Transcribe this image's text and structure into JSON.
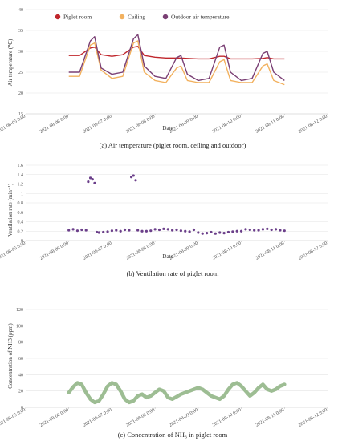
{
  "colors": {
    "piglet": "#c0272d",
    "ceiling": "#f2b15f",
    "outdoor": "#7a3f74",
    "vent": "#6b3f8a",
    "nh3": "#9dbd93",
    "grid": "#e3e3e3",
    "axis": "#bfbfbf"
  },
  "chart_data": [
    {
      "type": "line",
      "caption": "(a) Air temperature (piglet room, ceiling and outdoor)",
      "xlabel": "Date",
      "ylabel": "Air temperature (℃)",
      "ylim": [
        15,
        40
      ],
      "yticks": [
        "15",
        "20",
        "25",
        "30",
        "35",
        "40"
      ],
      "xlim_days": [
        0,
        7
      ],
      "xticks": [
        "2021-08-05 0:00",
        "2021-08-06 0:00",
        "2021-08-07 0:00",
        "2021-08-08 0:00",
        "2021-08-09 0:00",
        "2021-08-10 0:00",
        "2021-08-11 0:00",
        "2021-08-12 0:00"
      ],
      "legend": "top-left",
      "grid": true,
      "x": [
        1.0,
        1.25,
        1.5,
        1.6,
        1.75,
        2.0,
        2.25,
        2.5,
        2.6,
        2.75,
        3.0,
        3.25,
        3.5,
        3.6,
        3.75,
        4.0,
        4.25,
        4.5,
        4.6,
        4.75,
        5.0,
        5.25,
        5.5,
        5.6,
        5.75,
        6.0
      ],
      "series": [
        {
          "name": "Piglet room",
          "color_key": "piglet",
          "values": [
            29.0,
            29.0,
            30.8,
            31.0,
            29.2,
            28.8,
            29.2,
            31.0,
            31.2,
            29.0,
            28.6,
            28.4,
            28.4,
            28.4,
            28.3,
            28.2,
            28.2,
            28.8,
            28.8,
            28.2,
            28.2,
            28.2,
            28.3,
            28.5,
            28.2,
            28.2
          ]
        },
        {
          "name": "Ceiling",
          "color_key": "ceiling",
          "values": [
            24.0,
            24.0,
            31.5,
            32.0,
            25.5,
            23.5,
            24.0,
            32.0,
            32.5,
            25.0,
            23.0,
            22.5,
            26.0,
            26.5,
            23.0,
            22.5,
            22.5,
            27.5,
            28.0,
            23.0,
            22.5,
            22.5,
            26.5,
            27.0,
            23.0,
            22.0
          ]
        },
        {
          "name": "Outdoor air temperature",
          "color_key": "outdoor",
          "values": [
            25.0,
            25.0,
            32.5,
            33.5,
            26.0,
            24.5,
            25.0,
            33.0,
            34.0,
            26.5,
            24.0,
            23.5,
            28.5,
            29.0,
            24.5,
            23.0,
            23.5,
            31.0,
            31.5,
            25.0,
            23.0,
            23.5,
            29.5,
            30.0,
            25.0,
            23.0
          ]
        }
      ]
    },
    {
      "type": "scatter",
      "caption": "(b) Ventilation rate of piglet room",
      "xlabel": "Date",
      "ylabel": "Ventilation rate (min⁻¹)",
      "ylim": [
        0,
        1.6
      ],
      "yticks": [
        "0",
        "0.2",
        "0.4",
        "0.6",
        "0.8",
        "1",
        "1.2",
        "1.4",
        "1.6"
      ],
      "xlim_days": [
        0,
        7
      ],
      "xticks": [
        "2021-08-05 0:00",
        "2021-08-06 0:00",
        "2021-08-07 0:00",
        "2021-08-08 0:00",
        "2021-08-09 0:00",
        "2021-08-10 0:00",
        "2021-08-11 0:00",
        "2021-08-12 0:00"
      ],
      "grid": true,
      "series": [
        {
          "name": "",
          "color_key": "vent",
          "x": [
            1.0,
            1.1,
            1.2,
            1.3,
            1.4,
            1.45,
            1.5,
            1.55,
            1.6,
            1.65,
            1.7,
            1.8,
            1.9,
            2.0,
            2.1,
            2.2,
            2.3,
            2.4,
            2.45,
            2.5,
            2.55,
            2.6,
            2.7,
            2.8,
            2.9,
            3.0,
            3.1,
            3.2,
            3.3,
            3.4,
            3.5,
            3.6,
            3.7,
            3.8,
            3.9,
            4.0,
            4.1,
            4.2,
            4.3,
            4.4,
            4.5,
            4.6,
            4.7,
            4.8,
            4.9,
            5.0,
            5.1,
            5.2,
            5.3,
            5.4,
            5.5,
            5.6,
            5.7,
            5.8,
            5.9,
            6.0
          ],
          "values": [
            0.22,
            0.24,
            0.21,
            0.23,
            0.22,
            1.25,
            1.33,
            1.3,
            1.22,
            0.18,
            0.17,
            0.18,
            0.19,
            0.21,
            0.22,
            0.2,
            0.23,
            0.22,
            1.35,
            1.38,
            1.28,
            0.22,
            0.2,
            0.2,
            0.21,
            0.24,
            0.23,
            0.25,
            0.24,
            0.22,
            0.23,
            0.21,
            0.2,
            0.19,
            0.23,
            0.17,
            0.15,
            0.16,
            0.18,
            0.15,
            0.17,
            0.16,
            0.18,
            0.19,
            0.2,
            0.2,
            0.24,
            0.23,
            0.22,
            0.22,
            0.24,
            0.25,
            0.23,
            0.24,
            0.22,
            0.21
          ]
        }
      ]
    },
    {
      "type": "area",
      "caption": "(c) Concentration of NH₃ in piglet room",
      "xlabel": "",
      "ylabel": "Concentration of NH3 (ppm)",
      "ylim": [
        0,
        120
      ],
      "yticks": [
        "0",
        "20",
        "40",
        "60",
        "80",
        "100",
        "120"
      ],
      "xlim_days": [
        0,
        7
      ],
      "xticks": [
        "2021-08-05 0:00",
        "2021-08-06 0:00",
        "2021-08-07 0:00",
        "2021-08-08 0:00",
        "2021-08-09 0:00",
        "2021-08-10 0:00",
        "2021-08-11 0:00",
        "2021-08-12 0:00"
      ],
      "grid": true,
      "series": [
        {
          "name": "",
          "color_key": "nh3",
          "x": [
            1.0,
            1.1,
            1.2,
            1.3,
            1.4,
            1.5,
            1.6,
            1.7,
            1.8,
            1.9,
            2.0,
            2.1,
            2.2,
            2.3,
            2.4,
            2.5,
            2.6,
            2.7,
            2.8,
            2.9,
            3.0,
            3.1,
            3.2,
            3.3,
            3.4,
            3.5,
            3.6,
            3.7,
            3.8,
            3.9,
            4.0,
            4.1,
            4.2,
            4.3,
            4.4,
            4.5,
            4.6,
            4.7,
            4.8,
            4.9,
            5.0,
            5.1,
            5.2,
            5.3,
            5.4,
            5.5,
            5.6,
            5.7,
            5.8,
            5.9,
            6.0
          ],
          "values": [
            18,
            25,
            30,
            28,
            18,
            10,
            6,
            8,
            16,
            26,
            30,
            28,
            20,
            10,
            6,
            8,
            14,
            16,
            12,
            14,
            18,
            22,
            20,
            12,
            10,
            13,
            16,
            18,
            20,
            22,
            24,
            22,
            18,
            14,
            12,
            10,
            14,
            22,
            28,
            30,
            26,
            20,
            14,
            18,
            24,
            28,
            22,
            20,
            22,
            26,
            28
          ]
        }
      ]
    }
  ]
}
